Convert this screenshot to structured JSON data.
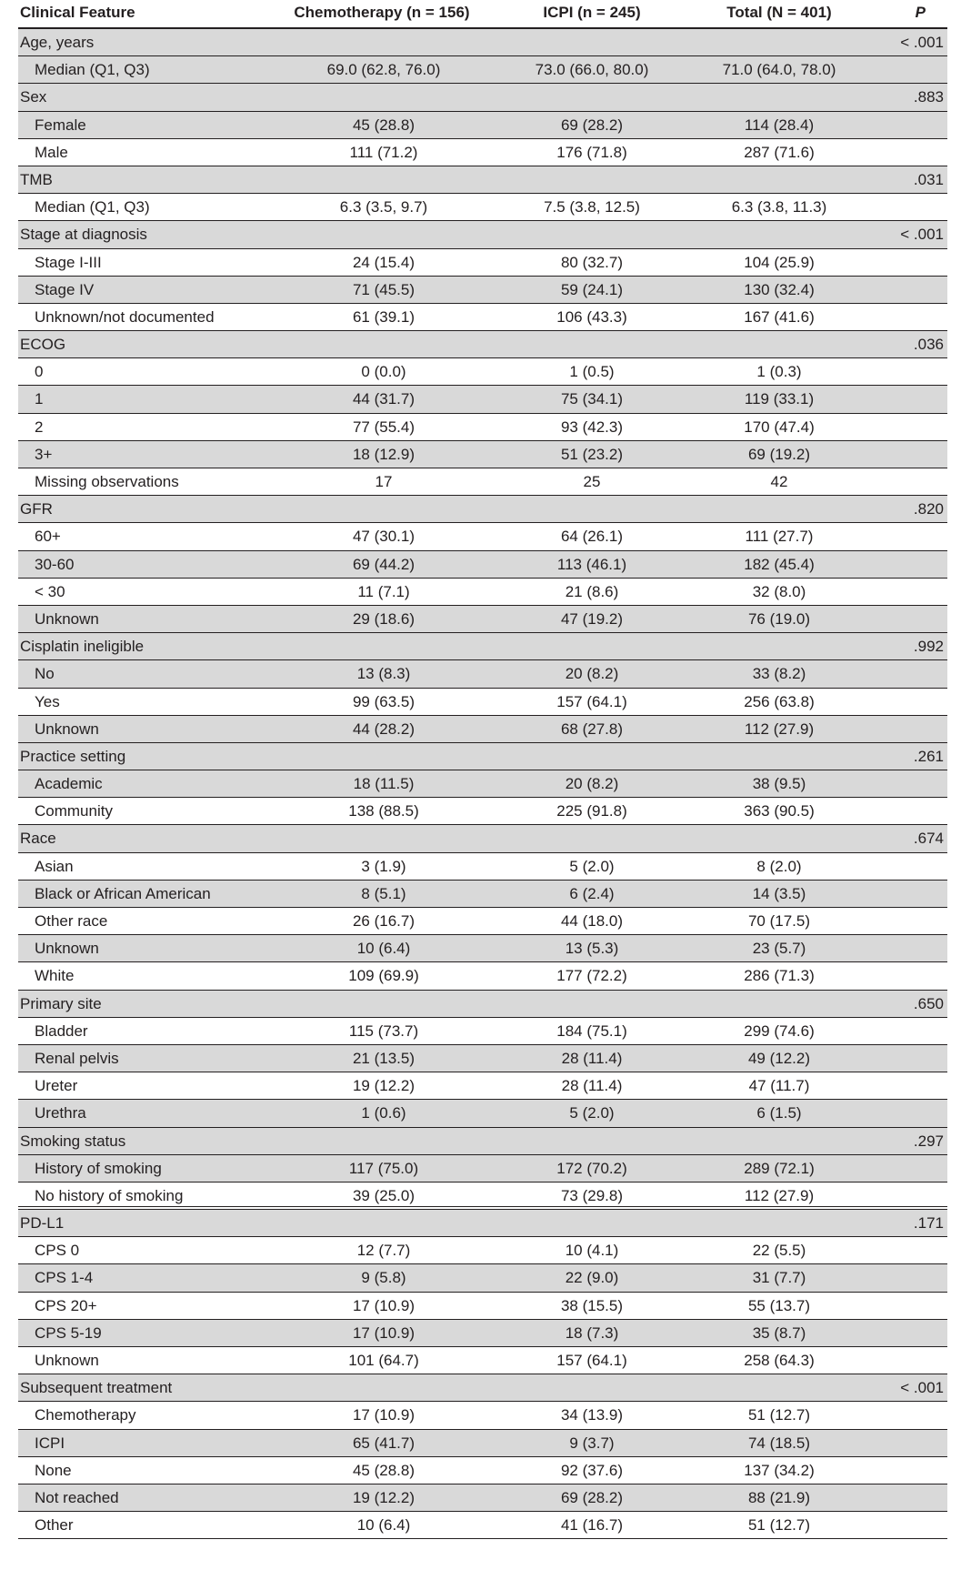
{
  "table": {
    "headers": {
      "feature": "Clinical Feature",
      "chemo": "Chemotherapy (n = 156)",
      "icpi": "ICPI (n = 245)",
      "total": "Total (N = 401)",
      "p": "P"
    },
    "rows": [
      {
        "type": "group",
        "label": "Age, years",
        "p": "< .001"
      },
      {
        "type": "sub",
        "label": "Median (Q1, Q3)",
        "chemo": "69.0 (62.8, 76.0)",
        "icpi": "73.0 (66.0, 80.0)",
        "total": "71.0 (64.0, 78.0)"
      },
      {
        "type": "group",
        "label": "Sex",
        "p": ".883"
      },
      {
        "type": "sub",
        "label": "Female",
        "chemo": "45 (28.8)",
        "icpi": "69 (28.2)",
        "total": "114 (28.4)"
      },
      {
        "type": "sub",
        "label": "Male",
        "chemo": "111 (71.2)",
        "icpi": "176 (71.8)",
        "total": "287 (71.6)"
      },
      {
        "type": "group",
        "label": "TMB",
        "p": ".031"
      },
      {
        "type": "sub",
        "label": "Median (Q1, Q3)",
        "chemo": "6.3 (3.5, 9.7)",
        "icpi": "7.5 (3.8, 12.5)",
        "total": "6.3 (3.8, 11.3)"
      },
      {
        "type": "group",
        "label": "Stage at diagnosis",
        "p": "< .001"
      },
      {
        "type": "sub",
        "label": "Stage I-III",
        "chemo": "24 (15.4)",
        "icpi": "80 (32.7)",
        "total": "104 (25.9)"
      },
      {
        "type": "sub",
        "label": "Stage IV",
        "chemo": "71 (45.5)",
        "icpi": "59 (24.1)",
        "total": "130 (32.4)"
      },
      {
        "type": "sub",
        "label": "Unknown/not documented",
        "chemo": "61 (39.1)",
        "icpi": "106 (43.3)",
        "total": "167 (41.6)"
      },
      {
        "type": "group",
        "label": "ECOG",
        "p": ".036"
      },
      {
        "type": "sub",
        "label": "0",
        "chemo": "0 (0.0)",
        "icpi": "1 (0.5)",
        "total": "1 (0.3)"
      },
      {
        "type": "sub",
        "label": "1",
        "chemo": "44 (31.7)",
        "icpi": "75 (34.1)",
        "total": "119 (33.1)"
      },
      {
        "type": "sub",
        "label": "2",
        "chemo": "77 (55.4)",
        "icpi": "93 (42.3)",
        "total": "170 (47.4)"
      },
      {
        "type": "sub",
        "label": "3+",
        "chemo": "18 (12.9)",
        "icpi": "51 (23.2)",
        "total": "69 (19.2)"
      },
      {
        "type": "sub",
        "label": "Missing observations",
        "chemo": "17",
        "icpi": "25",
        "total": "42"
      },
      {
        "type": "group",
        "label": "GFR",
        "p": ".820"
      },
      {
        "type": "sub",
        "label": "60+",
        "chemo": "47 (30.1)",
        "icpi": "64 (26.1)",
        "total": "111 (27.7)"
      },
      {
        "type": "sub",
        "label": "30-60",
        "chemo": "69 (44.2)",
        "icpi": "113 (46.1)",
        "total": "182 (45.4)"
      },
      {
        "type": "sub",
        "label": "< 30",
        "chemo": "11 (7.1)",
        "icpi": "21 (8.6)",
        "total": "32 (8.0)"
      },
      {
        "type": "sub",
        "label": "Unknown",
        "chemo": "29 (18.6)",
        "icpi": "47 (19.2)",
        "total": "76 (19.0)"
      },
      {
        "type": "group",
        "label": "Cisplatin ineligible",
        "p": ".992"
      },
      {
        "type": "sub",
        "label": "No",
        "chemo": "13 (8.3)",
        "icpi": "20 (8.2)",
        "total": "33 (8.2)"
      },
      {
        "type": "sub",
        "label": "Yes",
        "chemo": "99 (63.5)",
        "icpi": "157 (64.1)",
        "total": "256 (63.8)"
      },
      {
        "type": "sub",
        "label": "Unknown",
        "chemo": "44 (28.2)",
        "icpi": "68 (27.8)",
        "total": "112 (27.9)"
      },
      {
        "type": "group",
        "label": "Practice setting",
        "p": ".261"
      },
      {
        "type": "sub",
        "label": "Academic",
        "chemo": "18 (11.5)",
        "icpi": "20 (8.2)",
        "total": "38 (9.5)"
      },
      {
        "type": "sub",
        "label": "Community",
        "chemo": "138 (88.5)",
        "icpi": "225 (91.8)",
        "total": "363 (90.5)"
      },
      {
        "type": "group",
        "label": "Race",
        "p": ".674"
      },
      {
        "type": "sub",
        "label": "Asian",
        "chemo": "3 (1.9)",
        "icpi": "5 (2.0)",
        "total": "8 (2.0)"
      },
      {
        "type": "sub",
        "label": "Black or African American",
        "chemo": "8 (5.1)",
        "icpi": "6 (2.4)",
        "total": "14 (3.5)"
      },
      {
        "type": "sub",
        "label": "Other race",
        "chemo": "26 (16.7)",
        "icpi": "44 (18.0)",
        "total": "70 (17.5)"
      },
      {
        "type": "sub",
        "label": "Unknown",
        "chemo": "10 (6.4)",
        "icpi": "13 (5.3)",
        "total": "23 (5.7)"
      },
      {
        "type": "sub",
        "label": "White",
        "chemo": "109 (69.9)",
        "icpi": "177 (72.2)",
        "total": "286 (71.3)"
      },
      {
        "type": "group",
        "label": "Primary site",
        "p": ".650"
      },
      {
        "type": "sub",
        "label": "Bladder",
        "chemo": "115 (73.7)",
        "icpi": "184 (75.1)",
        "total": "299 (74.6)"
      },
      {
        "type": "sub",
        "label": "Renal pelvis",
        "chemo": "21 (13.5)",
        "icpi": "28 (11.4)",
        "total": "49 (12.2)"
      },
      {
        "type": "sub",
        "label": "Ureter",
        "chemo": "19 (12.2)",
        "icpi": "28 (11.4)",
        "total": "47 (11.7)"
      },
      {
        "type": "sub",
        "label": "Urethra",
        "chemo": "1 (0.6)",
        "icpi": "5 (2.0)",
        "total": "6 (1.5)"
      },
      {
        "type": "group",
        "label": "Smoking status",
        "p": ".297"
      },
      {
        "type": "sub",
        "label": "History of smoking",
        "chemo": "117 (75.0)",
        "icpi": "172 (70.2)",
        "total": "289 (72.1)"
      },
      {
        "type": "sub",
        "label": "No history of smoking",
        "chemo": "39 (25.0)",
        "icpi": "73 (29.8)",
        "total": "112 (27.9)"
      },
      {
        "type": "group",
        "label": "PD-L1",
        "p": ".171"
      },
      {
        "type": "sub",
        "label": "CPS 0",
        "chemo": "12 (7.7)",
        "icpi": "10 (4.1)",
        "total": "22 (5.5)"
      },
      {
        "type": "sub",
        "label": "CPS 1-4",
        "chemo": "9 (5.8)",
        "icpi": "22 (9.0)",
        "total": "31 (7.7)"
      },
      {
        "type": "sub",
        "label": "CPS 20+",
        "chemo": "17 (10.9)",
        "icpi": "38 (15.5)",
        "total": "55 (13.7)"
      },
      {
        "type": "sub",
        "label": "CPS 5-19",
        "chemo": "17 (10.9)",
        "icpi": "18 (7.3)",
        "total": "35 (8.7)"
      },
      {
        "type": "sub",
        "label": "Unknown",
        "chemo": "101 (64.7)",
        "icpi": "157 (64.1)",
        "total": "258 (64.3)"
      },
      {
        "type": "group",
        "label": "Subsequent treatment",
        "p": "< .001"
      },
      {
        "type": "sub",
        "label": "Chemotherapy",
        "chemo": "17 (10.9)",
        "icpi": "34 (13.9)",
        "total": "51 (12.7)"
      },
      {
        "type": "sub",
        "label": "ICPI",
        "chemo": "65 (41.7)",
        "icpi": "9 (3.7)",
        "total": "74 (18.5)"
      },
      {
        "type": "sub",
        "label": "None",
        "chemo": "45 (28.8)",
        "icpi": "92 (37.6)",
        "total": "137 (34.2)"
      },
      {
        "type": "sub",
        "label": "Not reached",
        "chemo": "19 (12.2)",
        "icpi": "69 (28.2)",
        "total": "88 (21.9)"
      },
      {
        "type": "sub",
        "label": "Other",
        "chemo": "10 (6.4)",
        "icpi": "41 (16.7)",
        "total": "51 (12.7)"
      }
    ]
  }
}
